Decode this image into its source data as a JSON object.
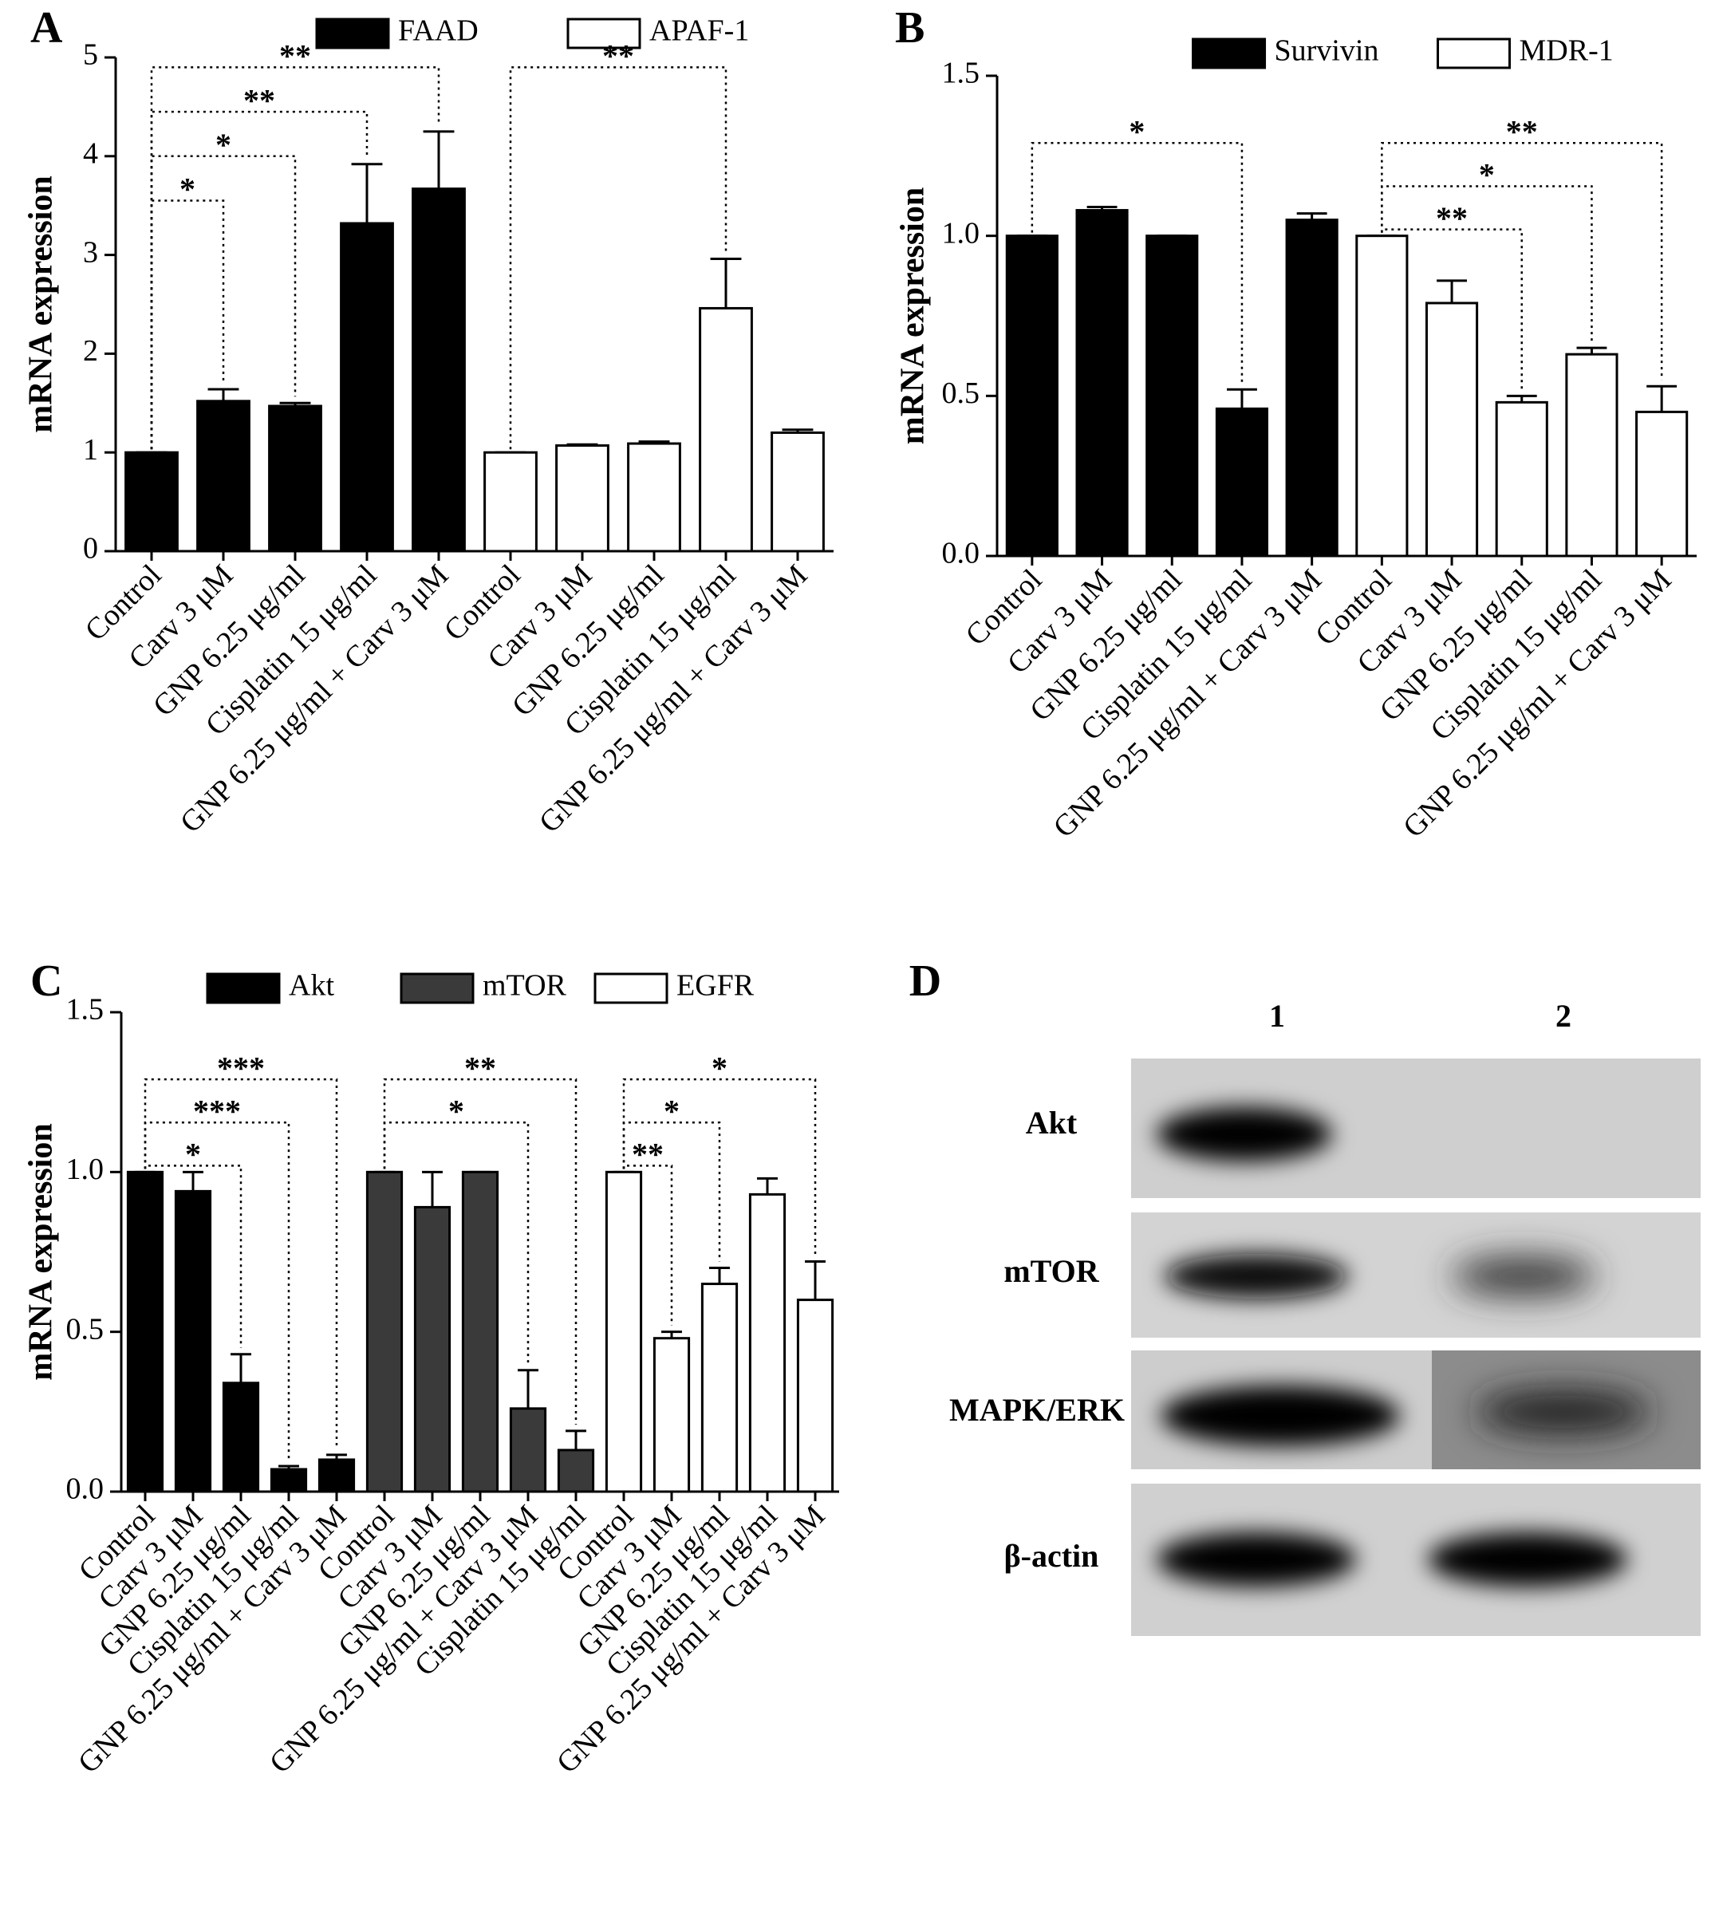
{
  "chart_data": [
    {
      "type": "bar",
      "panel": "A",
      "ylabel": "mRNA expression",
      "ylim": [
        0,
        5
      ],
      "yticks": [
        0,
        1,
        2,
        3,
        4,
        5
      ],
      "series": [
        {
          "name": "FAAD",
          "color": "#000000",
          "categories": [
            "Control",
            "Carv 3 μM",
            "GNP 6.25 μg/ml",
            "Cisplatin 15 μg/ml",
            "GNP 6.25 μg/ml + Carv 3 μM"
          ],
          "values": [
            1.0,
            1.52,
            1.47,
            3.32,
            3.67
          ],
          "errors": [
            0,
            0.12,
            0.03,
            0.6,
            0.58
          ]
        },
        {
          "name": "APAF-1",
          "color": "#ffffff",
          "categories": [
            "Control",
            "Carv 3 μM",
            "GNP 6.25 μg/ml",
            "Cisplatin 15 μg/ml",
            "GNP 6.25 μg/ml + Carv 3 μM"
          ],
          "values": [
            1.0,
            1.07,
            1.09,
            2.46,
            1.2
          ],
          "errors": [
            0,
            0.01,
            0.02,
            0.5,
            0.03
          ]
        }
      ],
      "brackets": [
        {
          "text": "*",
          "series": 0,
          "from": 0,
          "to": 1
        },
        {
          "text": "*",
          "series": 0,
          "from": 0,
          "to": 2
        },
        {
          "text": "**",
          "series": 0,
          "from": 0,
          "to": 3
        },
        {
          "text": "**",
          "series": 0,
          "from": 0,
          "to": 4
        },
        {
          "text": "**",
          "series": 1,
          "from": 0,
          "to": 3
        }
      ]
    },
    {
      "type": "bar",
      "panel": "B",
      "ylabel": "mRNA expression",
      "ylim": [
        0,
        1.5
      ],
      "yticks": [
        {
          "value": 0,
          "label": "0.0"
        },
        0.5,
        {
          "value": 1,
          "label": "1.0"
        },
        1.5
      ],
      "series": [
        {
          "name": "Survivin",
          "color": "#000000",
          "categories": [
            "Control",
            "Carv 3 μM",
            "GNP 6.25 μg/ml",
            "Cisplatin 15 μg/ml",
            "GNP 6.25 μg/ml + Carv 3 μM"
          ],
          "values": [
            1.0,
            1.08,
            1.0,
            0.46,
            1.05
          ],
          "errors": [
            0,
            0.01,
            0,
            0.06,
            0.02
          ]
        },
        {
          "name": "MDR-1",
          "color": "#ffffff",
          "categories": [
            "Control",
            "Carv 3 μM",
            "GNP 6.25 μg/ml",
            "Cisplatin 15 μg/ml",
            "GNP 6.25 μg/ml + Carv 3 μM"
          ],
          "values": [
            1.0,
            0.79,
            0.48,
            0.63,
            0.45
          ],
          "errors": [
            0,
            0.07,
            0.02,
            0.02,
            0.08
          ]
        }
      ],
      "brackets": [
        {
          "text": "*",
          "series": 0,
          "from": 0,
          "to": 3
        },
        {
          "text": "**",
          "series": 1,
          "from": 0,
          "to": 2
        },
        {
          "text": "*",
          "series": 1,
          "from": 0,
          "to": 3
        },
        {
          "text": "**",
          "series": 1,
          "from": 0,
          "to": 4
        }
      ]
    },
    {
      "type": "bar",
      "panel": "C",
      "ylabel": "mRNA expression",
      "ylim": [
        0,
        1.5
      ],
      "yticks": [
        {
          "value": 0,
          "label": "0.0"
        },
        0.5,
        {
          "value": 1,
          "label": "1.0"
        },
        1.5
      ],
      "series": [
        {
          "name": "Akt",
          "color": "#000000",
          "categories": [
            "Control",
            "Carv 3 μM",
            "GNP 6.25 μg/ml",
            "Cisplatin 15 μg/ml",
            "GNP 6.25 μg/ml + Carv 3 μM"
          ],
          "values": [
            1.0,
            0.94,
            0.34,
            0.07,
            0.1
          ],
          "errors": [
            0,
            0.06,
            0.09,
            0.01,
            0.015
          ]
        },
        {
          "name": "mTOR",
          "color": "#3a3a3a",
          "categories": [
            "Control",
            "Carv 3 μM",
            "GNP 6.25 μg/ml",
            "GNP 6.25 μg/ml + Carv 3 μM",
            "Cisplatin 15 μg/ml"
          ],
          "values": [
            1.0,
            0.89,
            1.0,
            0.26,
            0.13
          ],
          "errors": [
            0,
            0.11,
            0,
            0.12,
            0.06
          ]
        },
        {
          "name": "EGFR",
          "color": "#ffffff",
          "categories": [
            "Control",
            "Carv 3 μM",
            "GNP 6.25 μg/ml",
            "Cisplatin 15 μg/ml",
            "GNP 6.25 μg/ml + Carv 3 μM"
          ],
          "values": [
            1.0,
            0.48,
            0.65,
            0.93,
            0.6
          ],
          "errors": [
            0,
            0.02,
            0.05,
            0.05,
            0.12
          ]
        }
      ],
      "brackets": [
        {
          "text": "*",
          "series": 0,
          "from": 0,
          "to": 2
        },
        {
          "text": "***",
          "series": 0,
          "from": 0,
          "to": 3
        },
        {
          "text": "***",
          "series": 0,
          "from": 0,
          "to": 4
        },
        {
          "text": "*",
          "series": 1,
          "from": 0,
          "to": 3
        },
        {
          "text": "**",
          "series": 1,
          "from": 0,
          "to": 4
        },
        {
          "text": "**",
          "series": 2,
          "from": 0,
          "to": 1
        },
        {
          "text": "*",
          "series": 2,
          "from": 0,
          "to": 2
        },
        {
          "text": "*",
          "series": 2,
          "from": 0,
          "to": 4
        }
      ]
    }
  ],
  "blot": {
    "panel": "D",
    "lanes": [
      "1",
      "2"
    ],
    "rows": [
      "Akt",
      "mTOR",
      "MAPK/ERK",
      "β-actin"
    ]
  }
}
